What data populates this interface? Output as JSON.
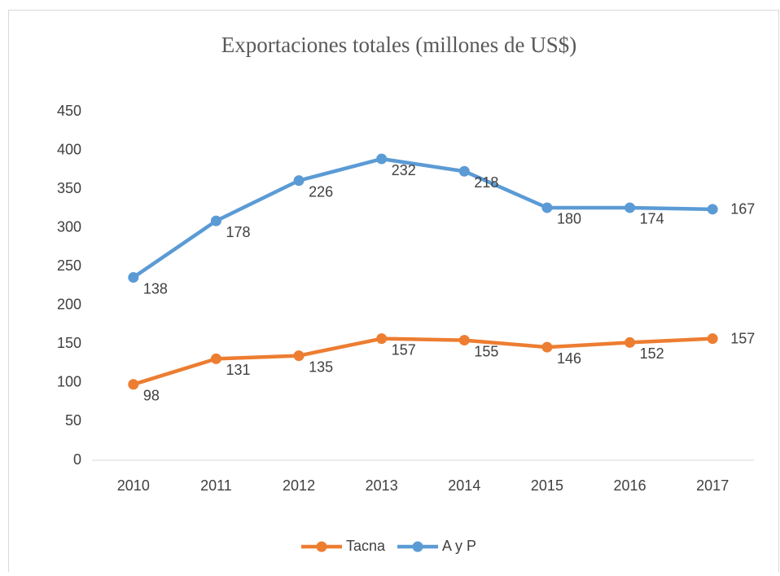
{
  "chart_data": {
    "type": "line",
    "stacked": true,
    "title": "Exportaciones totales (millones de US$)",
    "categories": [
      "2010",
      "2011",
      "2012",
      "2013",
      "2014",
      "2015",
      "2016",
      "2017"
    ],
    "series": [
      {
        "name": "Tacna",
        "color": "#ed7d31",
        "values": [
          98,
          131,
          135,
          157,
          155,
          146,
          152,
          157
        ]
      },
      {
        "name": "A y P",
        "color": "#5b9bd5",
        "values": [
          138,
          178,
          226,
          232,
          218,
          180,
          174,
          167
        ]
      }
    ],
    "ylim": [
      0,
      450
    ],
    "yticks": [
      0,
      50,
      100,
      150,
      200,
      250,
      300,
      350,
      400,
      450
    ],
    "grid": false,
    "legend": "bottom"
  }
}
